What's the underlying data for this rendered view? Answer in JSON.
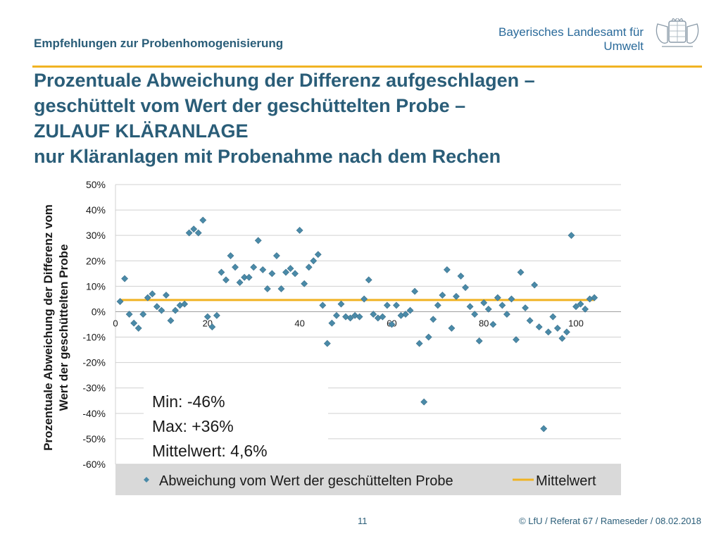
{
  "header": {
    "subtitle": "Empfehlungen zur Probenhomogenisierung",
    "org_line1": "Bayerisches Landesamt für",
    "org_line2": "Umwelt"
  },
  "slide": {
    "title": "Prozentuale Abweichung der Differenz aufgeschlagen –\ngeschüttelt vom Wert der geschüttelten Probe –\n ZULAUF KLÄRANLAGE\nnur Kläranlagen mit Probenahme nach dem Rechen"
  },
  "stats": {
    "min": "Min: -46%",
    "max": "Max: +36%",
    "mean": "Mittelwert: 4,6%"
  },
  "footer": {
    "page": "11",
    "copyright": "© LfU / Referat 67 / Rameseder / 08.02.2018"
  },
  "colors": {
    "accent": "#f0b323",
    "series": "#4a8aa8",
    "title": "#2a5d78",
    "grid": "#d0d0d0"
  },
  "chart_data": {
    "type": "scatter",
    "ylabel": "Prozentuale Abweichung der Differenz vom\nWert der geschüttelten Probe",
    "xlabel": "",
    "xlim": [
      0,
      110
    ],
    "ylim": [
      -60,
      50
    ],
    "x_ticks": [
      0,
      20,
      40,
      60,
      80,
      100
    ],
    "y_ticks": [
      50,
      40,
      30,
      20,
      10,
      0,
      -10,
      -20,
      -30,
      -40,
      -50,
      -60
    ],
    "y_tick_labels": [
      "50%",
      "40%",
      "30%",
      "20%",
      "10%",
      "0%",
      "-10%",
      "-20%",
      "-30%",
      "-40%",
      "-50%",
      "-60%"
    ],
    "grid": true,
    "legend_position": "bottom",
    "series": [
      {
        "name": "Abweichung vom Wert der geschüttelten Probe",
        "x": [
          1,
          2,
          3,
          4,
          5,
          6,
          7,
          8,
          9,
          10,
          11,
          12,
          13,
          14,
          15,
          16,
          17,
          18,
          19,
          20,
          21,
          22,
          23,
          24,
          25,
          26,
          27,
          28,
          29,
          30,
          31,
          32,
          33,
          34,
          35,
          36,
          37,
          38,
          39,
          40,
          41,
          42,
          43,
          44,
          45,
          46,
          47,
          48,
          49,
          50,
          51,
          52,
          53,
          54,
          55,
          56,
          57,
          58,
          59,
          60,
          61,
          62,
          63,
          64,
          65,
          66,
          67,
          68,
          69,
          70,
          71,
          72,
          73,
          74,
          75,
          76,
          77,
          78,
          79,
          80,
          81,
          82,
          83,
          84,
          85,
          86,
          87,
          88,
          89,
          90,
          91,
          92,
          93,
          94,
          95,
          96,
          97,
          98,
          99,
          100,
          101,
          102,
          103,
          104
        ],
        "y": [
          4,
          13,
          -1,
          -4.5,
          -6.5,
          -1,
          5.5,
          7,
          2,
          0.5,
          6.5,
          -3.5,
          0.5,
          2.5,
          3,
          31,
          32.5,
          31,
          36,
          -2,
          -6,
          -1.5,
          15.5,
          12.5,
          22,
          17.5,
          11.5,
          13.5,
          13.5,
          17.5,
          28,
          16.5,
          9,
          15,
          22,
          9,
          15.5,
          17,
          15,
          32,
          11,
          17.5,
          20,
          22.5,
          2.5,
          -12.5,
          -4.5,
          -1.5,
          3,
          -2,
          -2.5,
          -1.5,
          -2,
          5,
          12.5,
          -1,
          -2.5,
          -2,
          2.5,
          -5,
          2.5,
          -1.5,
          -1,
          0.5,
          8,
          -12.5,
          -35.5,
          -10,
          -3,
          2.5,
          6.5,
          16.5,
          -6.5,
          6,
          14,
          9.5,
          2,
          -1,
          -11.5,
          3.5,
          1,
          -5,
          5.5,
          2.5,
          -1,
          5,
          -11,
          15.5,
          1.5,
          -3.5,
          10.5,
          -6,
          -46,
          -8,
          -2,
          -6.5,
          -10.5,
          -8,
          30,
          2,
          3,
          1,
          5,
          5.5
        ]
      },
      {
        "name": "Mittelwert",
        "x": [
          1,
          104
        ],
        "y": [
          4.6,
          4.6
        ]
      }
    ]
  }
}
